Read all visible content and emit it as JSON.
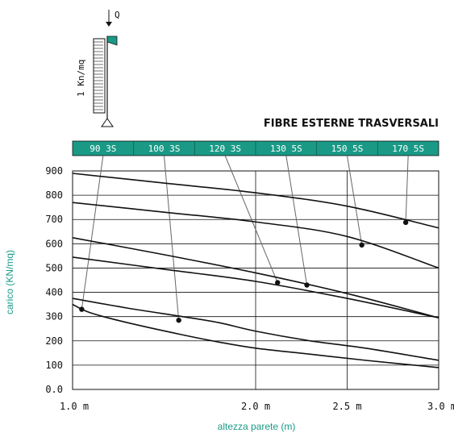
{
  "chart_data": {
    "type": "line",
    "title": "FIBRE ESTERNE TRASVERSALI",
    "xlabel": "altezza parete (m)",
    "ylabel": "carico (KN/mq)",
    "x_ticks": [
      "1.0 m",
      "2.0 m",
      "2.5 m",
      "3.0 m"
    ],
    "x_tick_values": [
      1.0,
      2.0,
      2.5,
      3.0
    ],
    "y_ticks": [
      "900",
      "800",
      "700",
      "600",
      "500",
      "400",
      "300",
      "200",
      "100",
      "0.0"
    ],
    "y_tick_values": [
      900,
      800,
      700,
      600,
      500,
      400,
      300,
      200,
      100,
      0
    ],
    "xlim": [
      1.0,
      3.0
    ],
    "ylim": [
      0,
      900
    ],
    "grid": true,
    "header_labels": [
      "90 3S",
      "100 3S",
      "120 3S",
      "130 5S",
      "150 5S",
      "170 5S"
    ],
    "series": [
      {
        "name": "90 3S",
        "x": [
          1.0,
          1.1,
          1.3,
          1.6,
          1.8,
          2.0,
          2.3,
          2.6,
          3.0
        ],
        "y": [
          350,
          315,
          275,
          225,
          195,
          170,
          145,
          120,
          90
        ],
        "marker": [
          1.05,
          330
        ]
      },
      {
        "name": "100 3S",
        "x": [
          1.0,
          1.3,
          1.6,
          1.8,
          2.0,
          2.3,
          2.6,
          3.0
        ],
        "y": [
          375,
          335,
          300,
          275,
          240,
          200,
          170,
          120
        ],
        "marker": [
          1.58,
          285
        ]
      },
      {
        "name": "120 3S",
        "x": [
          1.0,
          1.5,
          2.0,
          2.5,
          3.0
        ],
        "y": [
          545,
          495,
          445,
          375,
          295
        ],
        "marker": [
          2.12,
          440
        ]
      },
      {
        "name": "130 5S",
        "x": [
          1.0,
          1.5,
          2.0,
          2.5,
          3.0
        ],
        "y": [
          625,
          555,
          480,
          395,
          295
        ],
        "marker": [
          2.28,
          430
        ]
      },
      {
        "name": "150 5S",
        "x": [
          1.0,
          1.5,
          2.0,
          2.5,
          3.0
        ],
        "y": [
          770,
          730,
          690,
          630,
          500
        ],
        "marker": [
          2.58,
          595
        ]
      },
      {
        "name": "170 5S",
        "x": [
          1.0,
          1.5,
          2.0,
          2.5,
          3.0
        ],
        "y": [
          890,
          850,
          810,
          755,
          665
        ],
        "marker": [
          2.82,
          688
        ]
      }
    ]
  },
  "schematic": {
    "load_label": "Q",
    "distributed_label": "1 Kn/mq"
  },
  "colors": {
    "accent": "#1a9a86",
    "header_fill": "#1a9a86",
    "line": "#111111",
    "leader": "#666666"
  }
}
